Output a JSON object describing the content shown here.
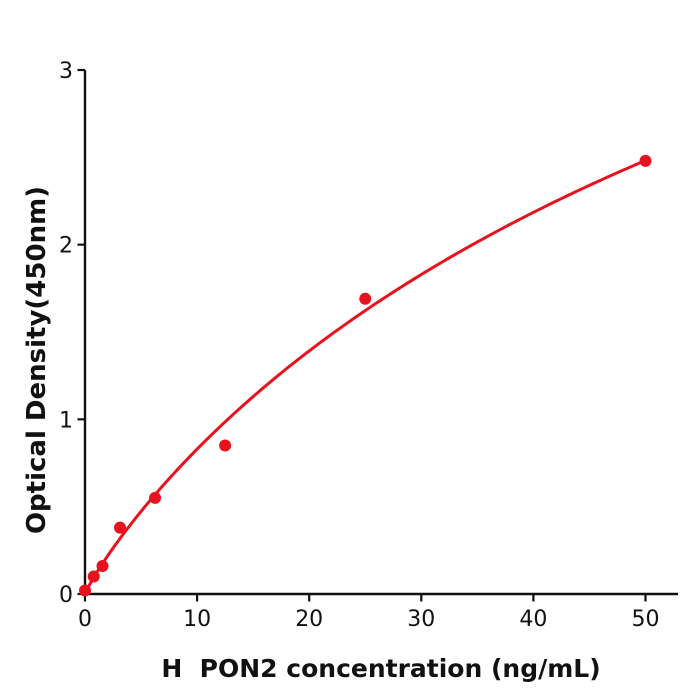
{
  "figure": {
    "background": "#ffffff",
    "axis_color": "#111111",
    "accent_color": "#e8121e"
  },
  "chart_data": {
    "type": "scatter",
    "title": "",
    "xlabel": "H  PON2 concentration (ng/mL)",
    "ylabel": "Optical Density(450nm)",
    "x_ticks": [
      0,
      10,
      20,
      30,
      40,
      50
    ],
    "y_ticks": [
      0,
      1,
      2,
      3
    ],
    "xlim": [
      0,
      52.9
    ],
    "ylim": [
      0,
      3
    ],
    "grid": false,
    "legend": "none",
    "marker_color": "#e8121e",
    "line_color": "#e8121e",
    "series": [
      {
        "name": "standard-points",
        "type": "scatter",
        "points": [
          {
            "x": 0,
            "y": 0.02
          },
          {
            "x": 0.78,
            "y": 0.1
          },
          {
            "x": 1.56,
            "y": 0.16
          },
          {
            "x": 3.125,
            "y": 0.38
          },
          {
            "x": 6.25,
            "y": 0.55
          },
          {
            "x": 12.5,
            "y": 0.85
          },
          {
            "x": 25,
            "y": 1.69
          },
          {
            "x": 50,
            "y": 2.48
          }
        ]
      },
      {
        "name": "fitted-curve",
        "type": "line",
        "fit": {
          "formula": "y = A*x^B / (C^B + x^B)",
          "A": 6.39,
          "B": 0.9,
          "C": 82.8,
          "x_range": [
            0,
            50
          ]
        }
      }
    ]
  }
}
